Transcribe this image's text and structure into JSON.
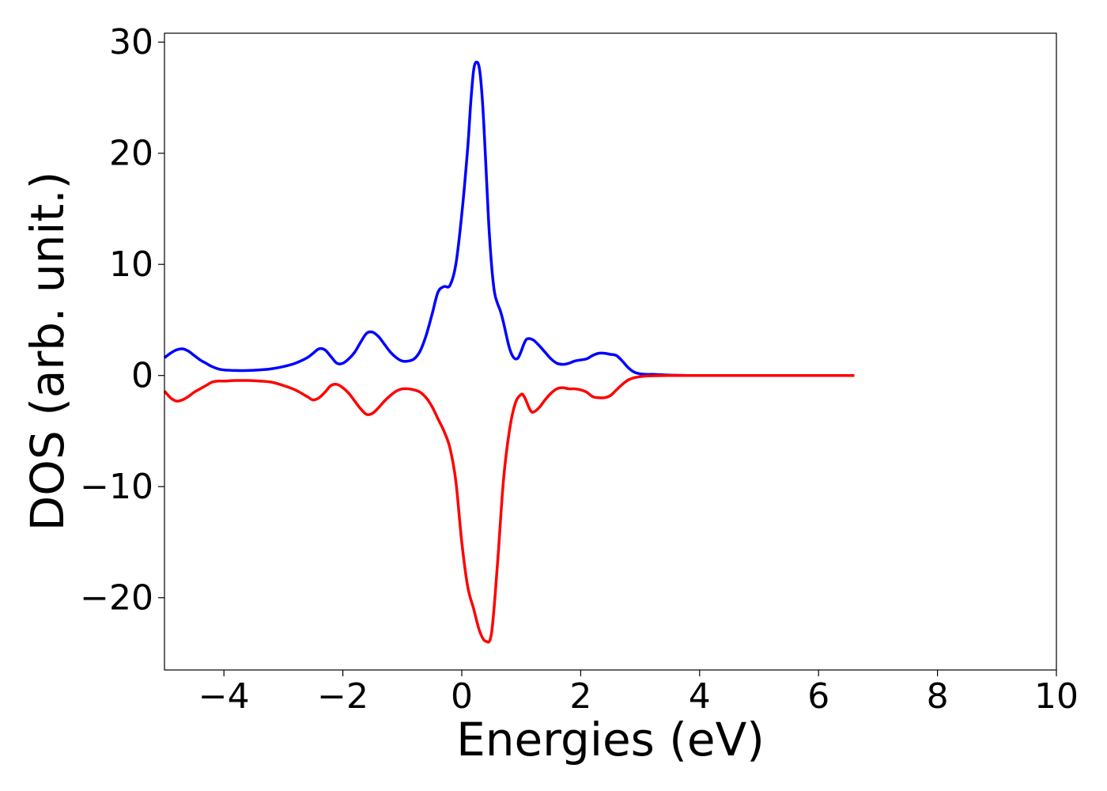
{
  "chart_data": {
    "type": "line",
    "title": "",
    "xlabel": "Energies (eV)",
    "ylabel": "DOS (arb. unit.)",
    "xlim": [
      -5,
      10
    ],
    "ylim": [
      -26.5,
      30.8
    ],
    "xticks": [
      -4,
      -2,
      0,
      2,
      4,
      6,
      8,
      10
    ],
    "xtick_labels": [
      "−4",
      "−2",
      "0",
      "2",
      "4",
      "6",
      "8",
      "10"
    ],
    "yticks": [
      -20,
      -10,
      0,
      10,
      20,
      30
    ],
    "ytick_labels": [
      "−20",
      "−10",
      "0",
      "10",
      "20",
      "30"
    ],
    "grid": false,
    "legend": false,
    "series": [
      {
        "color": "#0000ff",
        "x": [
          -5.0,
          -4.9,
          -4.8,
          -4.7,
          -4.6,
          -4.5,
          -4.4,
          -4.3,
          -4.2,
          -4.1,
          -4.0,
          -3.8,
          -3.6,
          -3.4,
          -3.2,
          -3.0,
          -2.8,
          -2.6,
          -2.5,
          -2.4,
          -2.3,
          -2.2,
          -2.1,
          -2.0,
          -1.9,
          -1.8,
          -1.7,
          -1.6,
          -1.5,
          -1.4,
          -1.3,
          -1.2,
          -1.1,
          -1.0,
          -0.9,
          -0.8,
          -0.7,
          -0.6,
          -0.5,
          -0.4,
          -0.3,
          -0.2,
          -0.1,
          0.0,
          0.1,
          0.15,
          0.2,
          0.25,
          0.3,
          0.35,
          0.4,
          0.45,
          0.5,
          0.55,
          0.6,
          0.65,
          0.7,
          0.75,
          0.8,
          0.85,
          0.9,
          0.95,
          1.0,
          1.05,
          1.1,
          1.2,
          1.3,
          1.4,
          1.5,
          1.6,
          1.7,
          1.8,
          1.9,
          2.0,
          2.1,
          2.2,
          2.3,
          2.4,
          2.5,
          2.6,
          2.7,
          2.8,
          2.9,
          3.0,
          3.1,
          3.2,
          3.3,
          3.4,
          3.5,
          3.6,
          3.7,
          3.8,
          3.9,
          4.0,
          4.1,
          4.2,
          4.4,
          4.6,
          4.8,
          5.0,
          5.5,
          6.0,
          6.6
        ],
        "y": [
          1.6,
          2.0,
          2.3,
          2.4,
          2.2,
          1.8,
          1.4,
          1.1,
          0.8,
          0.6,
          0.5,
          0.45,
          0.45,
          0.5,
          0.6,
          0.8,
          1.1,
          1.6,
          2.0,
          2.4,
          2.3,
          1.7,
          1.1,
          1.1,
          1.5,
          2.1,
          3.0,
          3.8,
          3.9,
          3.5,
          2.8,
          2.1,
          1.6,
          1.3,
          1.3,
          1.5,
          2.2,
          3.6,
          5.5,
          7.5,
          8.0,
          8.1,
          10.0,
          14.5,
          20.5,
          24.5,
          27.5,
          28.2,
          27.5,
          24.5,
          19.5,
          14.0,
          10.0,
          7.5,
          6.5,
          5.8,
          4.8,
          3.6,
          2.5,
          1.8,
          1.5,
          1.6,
          2.2,
          2.9,
          3.3,
          3.2,
          2.7,
          2.1,
          1.5,
          1.1,
          1.0,
          1.1,
          1.3,
          1.4,
          1.5,
          1.8,
          2.0,
          2.0,
          1.9,
          1.8,
          1.3,
          0.7,
          0.3,
          0.15,
          0.1,
          0.1,
          0.08,
          0.05,
          0.03,
          0.02,
          0.01,
          0.0,
          0.0,
          0.0,
          0.0,
          0.0,
          0.0,
          0.0,
          0.0,
          0.0,
          0.0,
          0.0,
          0.0
        ]
      },
      {
        "color": "#ff0000",
        "x": [
          -5.0,
          -4.9,
          -4.8,
          -4.7,
          -4.6,
          -4.5,
          -4.4,
          -4.3,
          -4.2,
          -4.1,
          -4.0,
          -3.8,
          -3.6,
          -3.4,
          -3.2,
          -3.0,
          -2.8,
          -2.6,
          -2.5,
          -2.4,
          -2.3,
          -2.2,
          -2.1,
          -2.0,
          -1.9,
          -1.8,
          -1.7,
          -1.6,
          -1.5,
          -1.4,
          -1.3,
          -1.2,
          -1.1,
          -1.0,
          -0.9,
          -0.8,
          -0.7,
          -0.6,
          -0.5,
          -0.4,
          -0.3,
          -0.2,
          -0.1,
          0.0,
          0.1,
          0.2,
          0.3,
          0.4,
          0.5,
          0.6,
          0.7,
          0.8,
          0.9,
          1.0,
          1.05,
          1.1,
          1.15,
          1.2,
          1.3,
          1.4,
          1.5,
          1.6,
          1.7,
          1.8,
          1.9,
          2.0,
          2.1,
          2.2,
          2.3,
          2.4,
          2.5,
          2.6,
          2.7,
          2.8,
          2.9,
          3.0,
          3.1,
          3.2,
          3.3,
          3.4,
          3.5,
          3.6,
          3.7,
          3.8,
          3.9,
          4.0,
          4.1,
          4.2,
          4.4,
          4.6,
          4.8,
          5.0,
          5.5,
          6.0,
          6.6
        ],
        "y": [
          -1.4,
          -2.0,
          -2.3,
          -2.2,
          -1.9,
          -1.5,
          -1.2,
          -0.9,
          -0.6,
          -0.5,
          -0.5,
          -0.45,
          -0.45,
          -0.5,
          -0.6,
          -0.9,
          -1.3,
          -1.9,
          -2.2,
          -2.0,
          -1.5,
          -0.9,
          -0.8,
          -1.1,
          -1.6,
          -2.3,
          -3.0,
          -3.5,
          -3.4,
          -2.9,
          -2.3,
          -1.8,
          -1.4,
          -1.2,
          -1.2,
          -1.3,
          -1.5,
          -2.0,
          -2.8,
          -3.9,
          -5.0,
          -6.5,
          -9.5,
          -15.0,
          -19.0,
          -21.0,
          -23.0,
          -23.9,
          -23.2,
          -17.0,
          -9.5,
          -5.0,
          -2.5,
          -1.7,
          -1.9,
          -2.5,
          -3.1,
          -3.3,
          -2.9,
          -2.2,
          -1.6,
          -1.2,
          -1.1,
          -1.2,
          -1.2,
          -1.3,
          -1.5,
          -1.9,
          -2.0,
          -2.0,
          -1.8,
          -1.3,
          -0.8,
          -0.4,
          -0.2,
          -0.1,
          -0.05,
          -0.03,
          -0.02,
          -0.01,
          0.0,
          0.0,
          0.0,
          0.0,
          0.0,
          0.0,
          0.0,
          0.0,
          0.0,
          0.0,
          0.0,
          0.0,
          0.0,
          0.0,
          0.0
        ]
      }
    ]
  }
}
